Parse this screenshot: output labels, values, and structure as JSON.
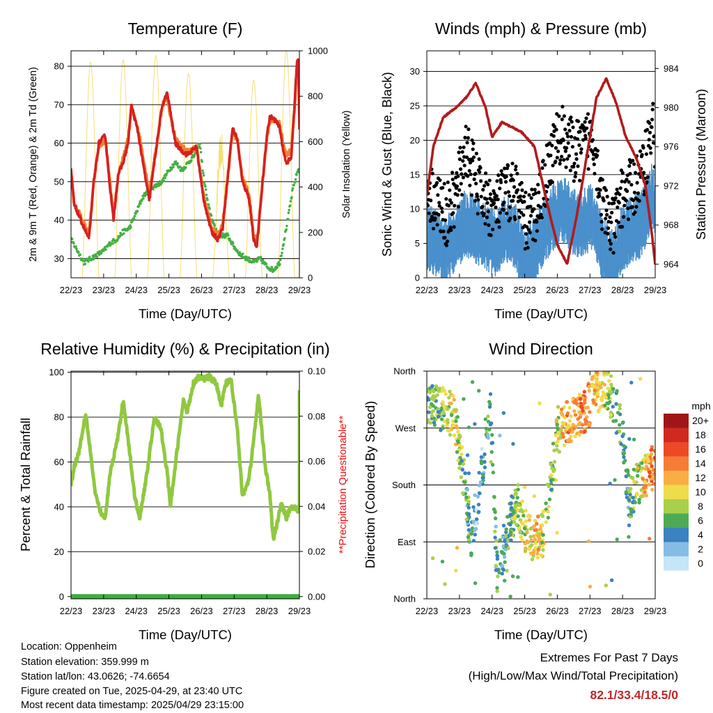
{
  "colors": {
    "temp_red": "#d62020",
    "temp_orange": "#f08030",
    "dewpoint_green": "#44b044",
    "solar_yellow": "#f7df70",
    "wind_blue": "#4a90cc",
    "gust_black": "#000000",
    "pressure_maroon": "#b01c1c",
    "rh_green": "#90c840",
    "precip_green": "#3cae3c",
    "precip_note_red": "#ee1111",
    "extremes_red": "#c0262a"
  },
  "x_ticks": [
    "22/23",
    "23/23",
    "24/23",
    "25/23",
    "26/23",
    "27/23",
    "28/23",
    "29/23"
  ],
  "speed_legend": {
    "title": "mph",
    "labels": [
      "20+",
      "18",
      "16",
      "14",
      "12",
      "10",
      "8",
      "6",
      "4",
      "2",
      "0"
    ],
    "colors": [
      "#a01616",
      "#d02a20",
      "#ec4a26",
      "#f67c36",
      "#f9ae44",
      "#efdc4a",
      "#a8d04a",
      "#4caa56",
      "#3a82c0",
      "#86bce4",
      "#c4e6f8"
    ]
  },
  "info": {
    "location": "Location: Oppenheim",
    "elevation": "Station elevation: 359.999 m",
    "latlon": "Station lat/lon: 43.0626; -74.6654",
    "created": "Figure created on Tue, 2025-04-29, at 23:40 UTC",
    "recent": "Most recent data timestamp: 2025/04/29 23:15:00"
  },
  "extremes": {
    "title": "Extremes For Past 7 Days",
    "subtitle": "(High/Low/Max Wind/Total Precipitation)",
    "values": "82.1/33.4/18.5/0"
  },
  "chart_data": [
    {
      "type": "line",
      "title": "Temperature (F)",
      "xlabel": "Time (Day/UTC)",
      "ylabel": "2m & 9m T (Red, Orange) & 2m Td (Green)",
      "ylabel_right": "Solar Insolation (Yellow)",
      "ylim": [
        25,
        84
      ],
      "yticks": [
        30,
        40,
        50,
        60,
        70,
        80
      ],
      "ylim_right": [
        0,
        1000
      ],
      "yticks_right": [
        0,
        200,
        400,
        600,
        800,
        1000
      ],
      "xlim": [
        0,
        7
      ],
      "grid": true,
      "series": [
        {
          "key": "t2m",
          "x": [
            0,
            0.1,
            0.3,
            0.55,
            0.7,
            0.85,
            1.05,
            1.2,
            1.3,
            1.45,
            1.6,
            1.75,
            1.85,
            2.05,
            2.2,
            2.4,
            2.6,
            2.8,
            2.95,
            3.05,
            3.2,
            3.4,
            3.55,
            3.7,
            3.85,
            4.05,
            4.3,
            4.5,
            4.65,
            4.8,
            4.95,
            5.1,
            5.25,
            5.45,
            5.6,
            5.7,
            5.85,
            6.0,
            6.1,
            6.25,
            6.4,
            6.5,
            6.6,
            6.75,
            6.85,
            6.92,
            6.97,
            7.0
          ],
          "values": [
            53,
            44,
            40,
            35,
            50,
            60,
            62,
            48,
            40,
            52,
            55,
            60,
            70,
            63,
            55,
            45,
            58,
            70,
            73,
            68,
            60,
            58,
            57,
            58,
            59,
            46,
            37,
            35,
            38,
            51,
            64,
            61,
            50,
            46,
            35,
            33,
            48,
            62,
            67,
            66,
            64,
            58,
            55,
            56,
            70,
            81,
            82,
            64
          ]
        },
        {
          "key": "t9m",
          "x": [
            0,
            0.1,
            0.3,
            0.55,
            0.7,
            0.85,
            1.05,
            1.2,
            1.3,
            1.45,
            1.6,
            1.75,
            1.85,
            2.05,
            2.2,
            2.4,
            2.6,
            2.8,
            2.95,
            3.05,
            3.2,
            3.4,
            3.55,
            3.7,
            3.85,
            4.05,
            4.3,
            4.5,
            4.65,
            4.8,
            4.95,
            5.1,
            5.25,
            5.45,
            5.6,
            5.7,
            5.85,
            6.0,
            6.1,
            6.25,
            6.4,
            6.5,
            6.6,
            6.75,
            6.85,
            6.92,
            6.97,
            7.0
          ],
          "values": [
            52,
            44,
            41,
            36,
            50,
            59,
            61,
            49,
            41,
            52,
            56,
            61,
            69,
            64,
            57,
            47,
            58,
            70,
            72,
            67,
            61,
            59,
            58,
            58,
            59,
            47,
            38,
            36,
            39,
            51,
            63,
            61,
            51,
            47,
            36,
            34,
            48,
            61,
            66,
            66,
            65,
            60,
            57,
            58,
            69,
            79,
            81,
            66
          ]
        },
        {
          "key": "td",
          "x": [
            0,
            0.2,
            0.4,
            0.6,
            0.8,
            1.0,
            1.2,
            1.4,
            1.6,
            1.8,
            2.0,
            2.2,
            2.4,
            2.6,
            2.8,
            3.0,
            3.2,
            3.4,
            3.6,
            3.8,
            3.95,
            4.05,
            4.2,
            4.4,
            4.6,
            4.8,
            5.0,
            5.2,
            5.4,
            5.6,
            5.8,
            6.0,
            6.2,
            6.4,
            6.6,
            6.8,
            6.95,
            7.0
          ],
          "values": [
            35,
            32,
            29,
            30,
            31,
            32,
            34,
            35,
            37,
            38,
            42,
            46,
            48,
            49,
            50,
            53,
            55,
            53,
            55,
            57,
            60,
            52,
            44,
            38,
            36,
            36,
            33,
            31,
            30,
            29,
            30,
            28,
            27,
            29,
            38,
            48,
            53,
            53
          ]
        }
      ],
      "solar_bumps": [
        {
          "center": 0.6,
          "width": 0.52,
          "peak": 950
        },
        {
          "center": 1.6,
          "width": 0.52,
          "peak": 960
        },
        {
          "center": 2.6,
          "width": 0.52,
          "peak": 980
        },
        {
          "center": 3.6,
          "width": 0.52,
          "peak": 900
        },
        {
          "center": 4.6,
          "width": 0.52,
          "peak": 560
        },
        {
          "center": 5.6,
          "width": 0.52,
          "peak": 870
        },
        {
          "center": 6.6,
          "width": 0.52,
          "peak": 1000
        }
      ]
    },
    {
      "type": "scatter",
      "title": "Winds (mph) & Pressure (mb)",
      "xlabel": "Time (Day/UTC)",
      "ylabel": "Sonic Wind & Gust (Blue, Black)",
      "ylabel_right": "Station Pressure (Maroon)",
      "ylim": [
        0,
        33
      ],
      "yticks": [
        0,
        5,
        10,
        15,
        20,
        25,
        30
      ],
      "ylim_right": [
        962.6,
        985.8
      ],
      "yticks_right": [
        964,
        968,
        972,
        976,
        980,
        984
      ],
      "xlim": [
        0,
        7
      ],
      "grid": true,
      "wind_level": {
        "x": [
          0,
          0.3,
          0.6,
          0.9,
          1.2,
          1.5,
          1.8,
          2.1,
          2.4,
          2.7,
          3.0,
          3.3,
          3.6,
          3.9,
          4.2,
          4.5,
          4.8,
          5.1,
          5.4,
          5.7,
          6.0,
          6.3,
          6.6,
          6.9,
          7.0
        ],
        "values": [
          7,
          6,
          5,
          7,
          9,
          8,
          7,
          6,
          8,
          7,
          3,
          5,
          8,
          10,
          11,
          9,
          9,
          10,
          5,
          3,
          7,
          8,
          9,
          13,
          12
        ]
      },
      "gust_level": {
        "x": [
          0,
          0.3,
          0.6,
          0.9,
          1.2,
          1.5,
          1.8,
          2.1,
          2.4,
          2.7,
          3.0,
          3.3,
          3.6,
          3.9,
          4.2,
          4.5,
          4.8,
          5.1,
          5.4,
          5.7,
          6.0,
          6.3,
          6.6,
          6.9,
          7.0
        ],
        "values": [
          13,
          11,
          9,
          12,
          19,
          14,
          11,
          10,
          12,
          13,
          8,
          9,
          14,
          19,
          21,
          18,
          19,
          21,
          10,
          7,
          12,
          13,
          15,
          22,
          20
        ]
      },
      "pressure": {
        "x": [
          0,
          0.2,
          0.5,
          0.9,
          1.2,
          1.5,
          1.8,
          2.0,
          2.3,
          2.6,
          2.9,
          3.3,
          3.7,
          4.0,
          4.3,
          4.6,
          4.9,
          5.2,
          5.5,
          5.8,
          6.1,
          6.4,
          6.7,
          6.9,
          7.0
        ],
        "values": [
          971,
          976,
          979,
          980,
          981,
          982.5,
          980,
          977,
          978.5,
          978,
          977.5,
          976,
          970,
          966,
          964,
          969,
          975,
          981,
          983,
          980.5,
          977,
          975,
          972,
          967,
          964
        ]
      }
    },
    {
      "type": "line",
      "title": "Relative Humidity (%) & Precipitation (in)",
      "xlabel": "Time (Day/UTC)",
      "ylabel": "Percent & Total Rainfall",
      "ylabel_right": "**Precipitation Questionable**",
      "ylim": [
        -1,
        100.5
      ],
      "yticks": [
        0,
        20,
        40,
        60,
        80,
        100
      ],
      "ylim_right": [
        -0.001,
        0.1
      ],
      "yticks_right": [
        "0.00",
        "0.02",
        "0.04",
        "0.06",
        "0.08",
        "0.10"
      ],
      "xlim": [
        0,
        7
      ],
      "grid": true,
      "series": [
        {
          "key": "rh",
          "x": [
            0,
            0.1,
            0.25,
            0.45,
            0.55,
            0.75,
            0.95,
            1.05,
            1.2,
            1.45,
            1.6,
            1.75,
            1.95,
            2.1,
            2.3,
            2.55,
            2.75,
            2.95,
            3.05,
            3.25,
            3.45,
            3.55,
            3.75,
            3.9,
            4.05,
            4.25,
            4.45,
            4.6,
            4.75,
            4.9,
            5.1,
            5.25,
            5.45,
            5.6,
            5.75,
            5.95,
            6.1,
            6.2,
            6.35,
            6.45,
            6.6,
            6.75,
            6.85,
            6.95,
            6.97
          ],
          "values": [
            50,
            58,
            65,
            82,
            70,
            45,
            36,
            35,
            55,
            72,
            88,
            70,
            45,
            35,
            52,
            80,
            75,
            55,
            40,
            65,
            88,
            82,
            95,
            98,
            97,
            98,
            95,
            85,
            95,
            97,
            75,
            45,
            52,
            70,
            90,
            58,
            45,
            25,
            35,
            42,
            35,
            40,
            40,
            38,
            40
          ]
        },
        {
          "key": "precip",
          "x": [
            0,
            7
          ],
          "values": [
            0,
            0
          ]
        }
      ]
    },
    {
      "type": "scatter",
      "title": "Wind Direction",
      "xlabel": "Time (Day/UTC)",
      "ylabel": "Direction (Colored By Speed)",
      "y_categories": [
        "North",
        "East",
        "South",
        "West",
        "North"
      ],
      "ylim": [
        0,
        360
      ],
      "xlim": [
        0,
        7
      ],
      "grid": true,
      "direction": {
        "x": [
          0,
          0.3,
          0.6,
          0.85,
          1.0,
          1.2,
          1.35,
          1.6,
          1.85,
          1.95,
          2.15,
          2.35,
          2.6,
          2.8,
          3.0,
          3.2,
          3.35,
          3.55,
          3.75,
          4.0,
          4.3,
          4.6,
          4.9,
          5.1,
          5.3,
          5.5,
          5.8,
          6.0,
          6.2,
          6.4,
          6.6,
          6.8,
          6.97
        ],
        "values": [
          300,
          305,
          295,
          290,
          240,
          160,
          100,
          170,
          270,
          300,
          40,
          80,
          130,
          150,
          110,
          95,
          95,
          100,
          160,
          270,
          280,
          285,
          300,
          320,
          330,
          335,
          300,
          260,
          150,
          180,
          185,
          200,
          210
        ]
      },
      "speed": {
        "x": [
          0,
          0.5,
          0.85,
          1.2,
          1.6,
          2.0,
          2.4,
          2.8,
          3.1,
          3.4,
          3.8,
          4.2,
          4.6,
          5.0,
          5.4,
          5.8,
          6.2,
          6.6,
          6.97
        ],
        "values": [
          6,
          7,
          10,
          5,
          3,
          6,
          4,
          8,
          10,
          11,
          6,
          12,
          13,
          14,
          9,
          6,
          5,
          10,
          15
        ]
      }
    }
  ]
}
